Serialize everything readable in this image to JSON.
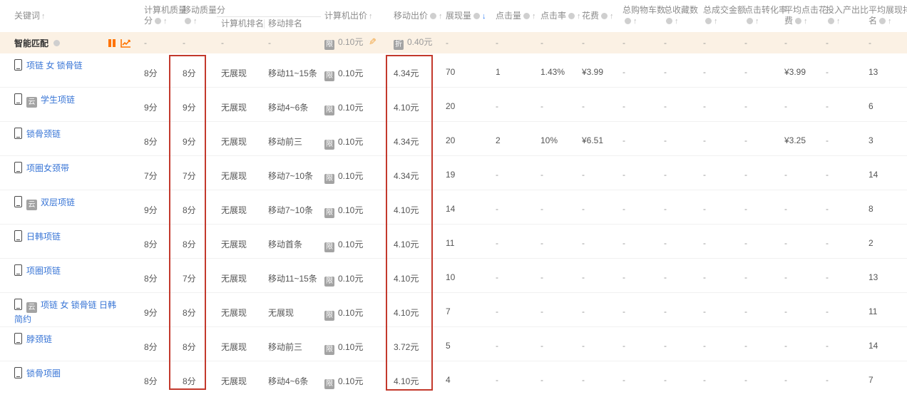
{
  "table": {
    "columns": [
      {
        "id": "keyword",
        "lines": [
          "关键词"
        ],
        "help": false,
        "sort": "up",
        "sub": false
      },
      {
        "id": "pc-quality",
        "lines": [
          "计算机质量",
          "分"
        ],
        "help": true,
        "sort": "up",
        "sub": false
      },
      {
        "id": "mobile-quality",
        "lines": [
          "移动质量分",
          ""
        ],
        "help": true,
        "sort": "up",
        "sub": false
      },
      {
        "id": "pc-rank",
        "lines": [
          "计算机排名"
        ],
        "help": false,
        "sort": null,
        "sub": true
      },
      {
        "id": "mobile-rank",
        "lines": [
          "移动排名"
        ],
        "help": false,
        "sort": null,
        "sub": true,
        "divider": true
      },
      {
        "id": "pc-bid",
        "lines": [
          "计算机出价"
        ],
        "help": false,
        "sort": "up",
        "sub": false
      },
      {
        "id": "mobile-bid",
        "lines": [
          "移动出价"
        ],
        "help": true,
        "sort": "up",
        "sub": false
      },
      {
        "id": "impressions",
        "lines": [
          "展现量"
        ],
        "help": true,
        "sort": "down",
        "sub": false
      },
      {
        "id": "clicks",
        "lines": [
          "点击量"
        ],
        "help": true,
        "sort": "up",
        "sub": false
      },
      {
        "id": "ctr",
        "lines": [
          "点击率"
        ],
        "help": true,
        "sort": "up",
        "sub": false
      },
      {
        "id": "cost",
        "lines": [
          "花费"
        ],
        "help": true,
        "sort": "up",
        "sub": false
      },
      {
        "id": "total-carts",
        "lines": [
          "总购物车数",
          ""
        ],
        "help": true,
        "sort": "up",
        "sub": false
      },
      {
        "id": "total-favorites",
        "lines": [
          "总收藏数",
          ""
        ],
        "help": true,
        "sort": "up",
        "sub": false
      },
      {
        "id": "total-gmv",
        "lines": [
          "总成交金额",
          ""
        ],
        "help": true,
        "sort": "up",
        "sub": false
      },
      {
        "id": "click-cvr",
        "lines": [
          "点击转化率",
          ""
        ],
        "help": true,
        "sort": "up",
        "sub": false
      },
      {
        "id": "avg-cpc",
        "lines": [
          "平均点击花",
          "费"
        ],
        "help": true,
        "sort": "up",
        "sub": false
      },
      {
        "id": "roi",
        "lines": [
          "投入产出比",
          ""
        ],
        "help": true,
        "sort": "up",
        "sub": false
      },
      {
        "id": "avg-rank",
        "lines": [
          "平均展现排",
          "名"
        ],
        "help": true,
        "sort": "up",
        "sub": false
      }
    ],
    "icons": {
      "pc_bid_tag": "限",
      "mobile_bid_tag": "折",
      "keyword_tag": "云"
    },
    "smart_match": {
      "label": "智能匹配",
      "cells": {
        "pc_quality": "-",
        "mobile_quality": "-",
        "pc_rank": "-",
        "mobile_rank": "-",
        "pc_bid": "0.10元",
        "mobile_bid": "0.40元",
        "impressions": "-",
        "clicks": "-",
        "ctr": "-",
        "cost": "-",
        "carts": "-",
        "favorites": "-",
        "gmv": "-",
        "cvr": "-",
        "avg_cpc": "-",
        "roi": "-",
        "avg_rank": "-"
      }
    },
    "rows": [
      {
        "keyword": "项链 女 锁骨链",
        "tag": false,
        "cells": {
          "pc_quality": "8分",
          "mobile_quality": "8分",
          "pc_rank": "无展现",
          "mobile_rank": "移动11~15条",
          "pc_bid": "0.10元",
          "mobile_bid": "4.34元",
          "impressions": "70",
          "clicks": "1",
          "ctr": "1.43%",
          "cost": "¥3.99",
          "carts": "-",
          "favorites": "-",
          "gmv": "-",
          "cvr": "-",
          "avg_cpc": "¥3.99",
          "roi": "-",
          "avg_rank": "13"
        }
      },
      {
        "keyword": "学生项链",
        "tag": true,
        "cells": {
          "pc_quality": "9分",
          "mobile_quality": "9分",
          "pc_rank": "无展现",
          "mobile_rank": "移动4~6条",
          "pc_bid": "0.10元",
          "mobile_bid": "4.10元",
          "impressions": "20",
          "clicks": "-",
          "ctr": "-",
          "cost": "-",
          "carts": "-",
          "favorites": "-",
          "gmv": "-",
          "cvr": "-",
          "avg_cpc": "-",
          "roi": "-",
          "avg_rank": "6"
        }
      },
      {
        "keyword": "锁骨颈链",
        "tag": false,
        "cells": {
          "pc_quality": "8分",
          "mobile_quality": "9分",
          "pc_rank": "无展现",
          "mobile_rank": "移动前三",
          "pc_bid": "0.10元",
          "mobile_bid": "4.34元",
          "impressions": "20",
          "clicks": "2",
          "ctr": "10%",
          "cost": "¥6.51",
          "carts": "-",
          "favorites": "-",
          "gmv": "-",
          "cvr": "-",
          "avg_cpc": "¥3.25",
          "roi": "-",
          "avg_rank": "3"
        }
      },
      {
        "keyword": "项圈女颈带",
        "tag": false,
        "cells": {
          "pc_quality": "7分",
          "mobile_quality": "7分",
          "pc_rank": "无展现",
          "mobile_rank": "移动7~10条",
          "pc_bid": "0.10元",
          "mobile_bid": "4.34元",
          "impressions": "19",
          "clicks": "-",
          "ctr": "-",
          "cost": "-",
          "carts": "-",
          "favorites": "-",
          "gmv": "-",
          "cvr": "-",
          "avg_cpc": "-",
          "roi": "-",
          "avg_rank": "14"
        }
      },
      {
        "keyword": "双层项链",
        "tag": true,
        "cells": {
          "pc_quality": "9分",
          "mobile_quality": "8分",
          "pc_rank": "无展现",
          "mobile_rank": "移动7~10条",
          "pc_bid": "0.10元",
          "mobile_bid": "4.10元",
          "impressions": "14",
          "clicks": "-",
          "ctr": "-",
          "cost": "-",
          "carts": "-",
          "favorites": "-",
          "gmv": "-",
          "cvr": "-",
          "avg_cpc": "-",
          "roi": "-",
          "avg_rank": "8"
        }
      },
      {
        "keyword": "日韩项链",
        "tag": false,
        "cells": {
          "pc_quality": "8分",
          "mobile_quality": "8分",
          "pc_rank": "无展现",
          "mobile_rank": "移动首条",
          "pc_bid": "0.10元",
          "mobile_bid": "4.10元",
          "impressions": "11",
          "clicks": "-",
          "ctr": "-",
          "cost": "-",
          "carts": "-",
          "favorites": "-",
          "gmv": "-",
          "cvr": "-",
          "avg_cpc": "-",
          "roi": "-",
          "avg_rank": "2"
        }
      },
      {
        "keyword": "项圈项链",
        "tag": false,
        "cells": {
          "pc_quality": "8分",
          "mobile_quality": "7分",
          "pc_rank": "无展现",
          "mobile_rank": "移动11~15条",
          "pc_bid": "0.10元",
          "mobile_bid": "4.10元",
          "impressions": "10",
          "clicks": "-",
          "ctr": "-",
          "cost": "-",
          "carts": "-",
          "favorites": "-",
          "gmv": "-",
          "cvr": "-",
          "avg_cpc": "-",
          "roi": "-",
          "avg_rank": "13"
        }
      },
      {
        "keyword": "项链 女 锁骨链 日韩 简约",
        "tag": true,
        "cells": {
          "pc_quality": "9分",
          "mobile_quality": "8分",
          "pc_rank": "无展现",
          "mobile_rank": "无展现",
          "pc_bid": "0.10元",
          "mobile_bid": "4.10元",
          "impressions": "7",
          "clicks": "-",
          "ctr": "-",
          "cost": "-",
          "carts": "-",
          "favorites": "-",
          "gmv": "-",
          "cvr": "-",
          "avg_cpc": "-",
          "roi": "-",
          "avg_rank": "11"
        }
      },
      {
        "keyword": "脖颈链",
        "tag": false,
        "cells": {
          "pc_quality": "8分",
          "mobile_quality": "8分",
          "pc_rank": "无展现",
          "mobile_rank": "移动前三",
          "pc_bid": "0.10元",
          "mobile_bid": "3.72元",
          "impressions": "5",
          "clicks": "-",
          "ctr": "-",
          "cost": "-",
          "carts": "-",
          "favorites": "-",
          "gmv": "-",
          "cvr": "-",
          "avg_cpc": "-",
          "roi": "-",
          "avg_rank": "14"
        }
      },
      {
        "keyword": "锁骨项圈",
        "tag": false,
        "cells": {
          "pc_quality": "8分",
          "mobile_quality": "8分",
          "pc_rank": "无展现",
          "mobile_rank": "移动4~6条",
          "pc_bid": "0.10元",
          "mobile_bid": "4.10元",
          "impressions": "4",
          "clicks": "-",
          "ctr": "-",
          "cost": "-",
          "carts": "-",
          "favorites": "-",
          "gmv": "-",
          "cvr": "-",
          "avg_cpc": "-",
          "roi": "-",
          "avg_rank": "7"
        }
      }
    ],
    "highlights": [
      "mobile-quality-column",
      "mobile-bid-column"
    ]
  },
  "colors": {
    "accent_orange": "#ff7300",
    "link_blue": "#3875d6",
    "highlight_red": "#c3392c",
    "smart_row_bg": "#fbf1e4",
    "sort_active_blue": "#2e7df6"
  }
}
